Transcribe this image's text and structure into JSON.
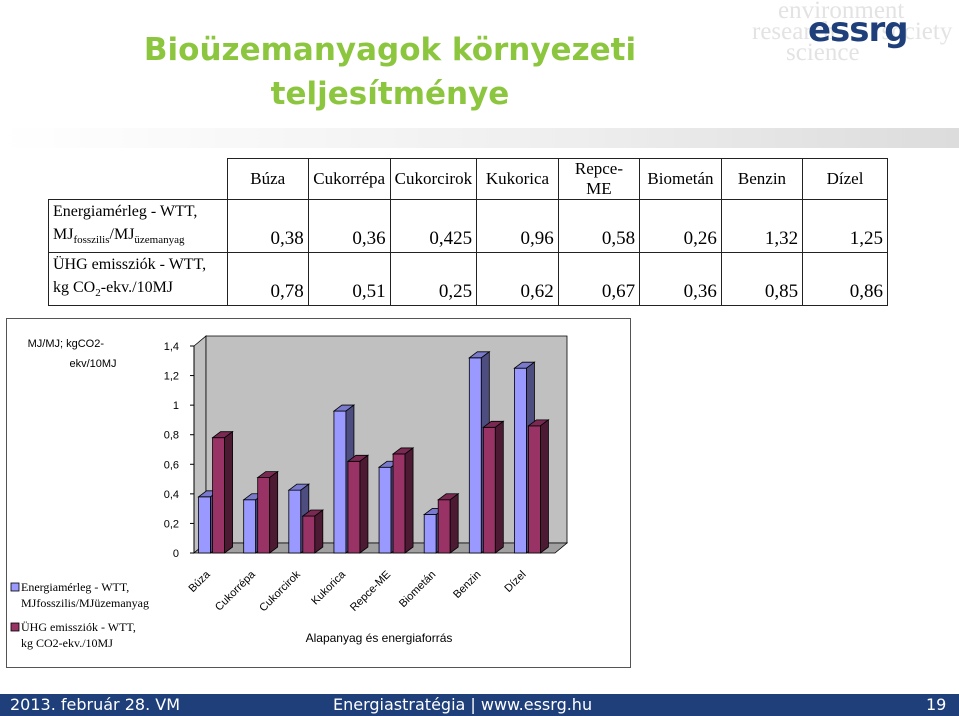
{
  "slide": {
    "title_line1": "Bioüzemanyagok környezeti",
    "title_line2": "teljesítménye",
    "logo_text": "essrg",
    "logo_bg_words": [
      "environment",
      "research",
      "society",
      "science"
    ]
  },
  "table": {
    "columns": [
      "Búza",
      "Cukorrépa",
      "Cukorcirok",
      "Kukorica",
      "Repce-ME",
      "Biometán",
      "Benzin",
      "Dízel"
    ],
    "rows": [
      {
        "label_line1": "Energiamérleg - WTT,",
        "label_line2_prefix": "MJ",
        "label_line2_sub1": "fosszilis",
        "label_line2_mid": "/MJ",
        "label_line2_sub2": "üzemanyag",
        "values": [
          "0,38",
          "0,36",
          "0,425",
          "0,96",
          "0,58",
          "0,26",
          "1,32",
          "1,25"
        ]
      },
      {
        "label_line1": "ÜHG emissziók - WTT,",
        "label_line2_prefix": "kg CO",
        "label_line2_sub1": "2",
        "label_line2_mid": "-ekv./10MJ",
        "label_line2_sub2": "",
        "values": [
          "0,78",
          "0,51",
          "0,25",
          "0,62",
          "0,67",
          "0,36",
          "0,85",
          "0,86"
        ]
      }
    ]
  },
  "chart_data": {
    "type": "bar",
    "categories": [
      "Búza",
      "Cukorrépa",
      "Cukorcirok",
      "Kukorica",
      "Repce-ME",
      "Biometán",
      "Benzin",
      "Dízel"
    ],
    "series": [
      {
        "name": "Energiamérleg - WTT, MJfosszilis/MJüzemanyag",
        "values": [
          0.38,
          0.36,
          0.425,
          0.96,
          0.58,
          0.26,
          1.32,
          1.25
        ],
        "color": "#9999ff"
      },
      {
        "name": "ÜHG emissziók - WTT, kg CO2-ekv./10MJ",
        "values": [
          0.78,
          0.51,
          0.25,
          0.62,
          0.67,
          0.36,
          0.85,
          0.86
        ],
        "color": "#993366"
      }
    ],
    "yticks": [
      "0",
      "0,2",
      "0,4",
      "0,6",
      "0,8",
      "1",
      "1,2",
      "1,4"
    ],
    "ylim": [
      0,
      1.4
    ],
    "ylabel_line1": "MJ/MJ; kgCO2-",
    "ylabel_line2": "ekv/10MJ",
    "xlabel": "Alapanyag és energiaforrás",
    "legend_lines": [
      [
        "Energiamérleg - WTT,",
        "MJfosszilis/MJüzemanyag"
      ],
      [
        "ÜHG emissziók - WTT,",
        "kg CO2-ekv./10MJ"
      ]
    ],
    "legend_position": "bottom-left",
    "three_d": true,
    "grid": false
  },
  "footer": {
    "left": "2013. február 28. VM",
    "center": "Energiastratégia | www.essrg.hu",
    "right": "19"
  }
}
